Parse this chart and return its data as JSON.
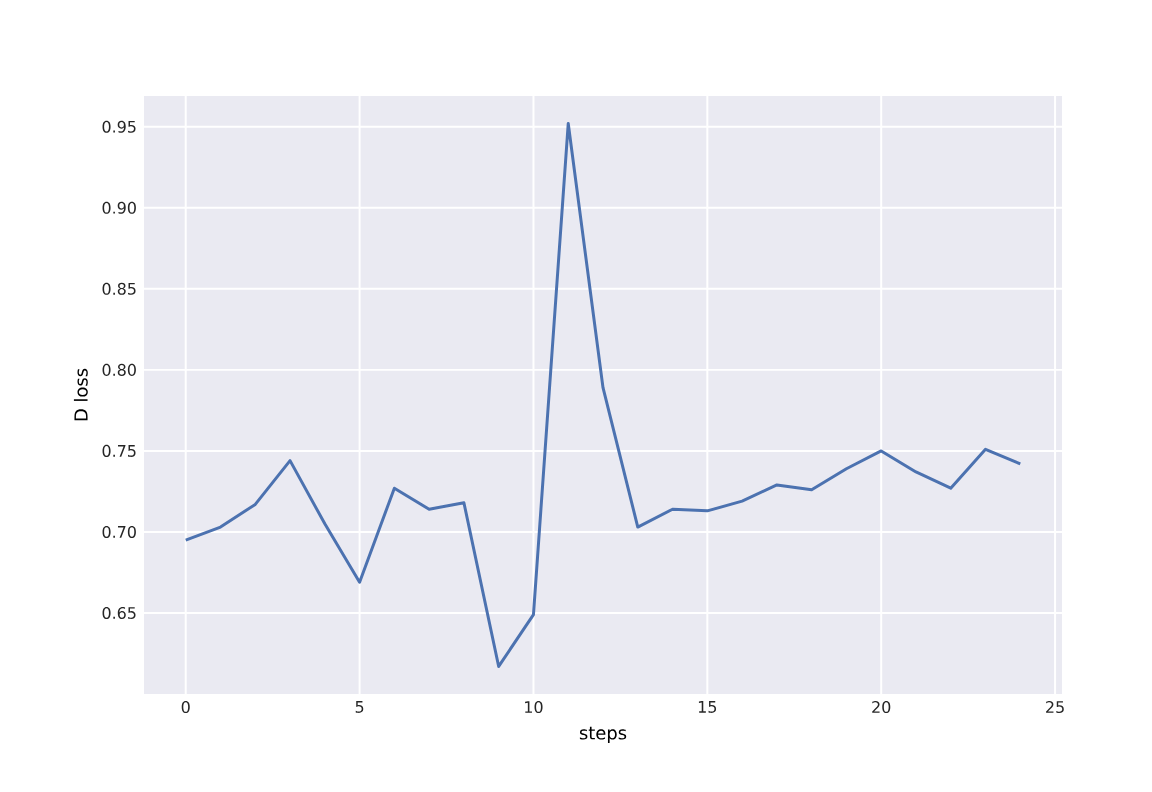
{
  "chart_data": {
    "type": "line",
    "xlabel": "steps",
    "ylabel": "D loss",
    "x": [
      0,
      1,
      2,
      3,
      4,
      5,
      6,
      7,
      8,
      9,
      10,
      11,
      12,
      13,
      14,
      15,
      16,
      17,
      18,
      19,
      20,
      21,
      22,
      23,
      24
    ],
    "series": [
      {
        "color": "#4c72b0",
        "values": [
          0.695,
          0.703,
          0.717,
          0.744,
          0.705,
          0.669,
          0.727,
          0.714,
          0.718,
          0.617,
          0.649,
          0.952,
          0.789,
          0.703,
          0.714,
          0.713,
          0.719,
          0.729,
          0.726,
          0.739,
          0.75,
          0.737,
          0.727,
          0.751,
          0.742
        ]
      }
    ],
    "xlim": [
      -1.2,
      25.2
    ],
    "ylim": [
      0.6,
      0.969
    ],
    "xticks": [
      0,
      5,
      10,
      15,
      20,
      25
    ],
    "yticks": [
      {
        "value": 0.65,
        "label": "0.65"
      },
      {
        "value": 0.7,
        "label": "0.70"
      },
      {
        "value": 0.75,
        "label": "0.75"
      },
      {
        "value": 0.8,
        "label": "0.80"
      },
      {
        "value": 0.85,
        "label": "0.85"
      },
      {
        "value": 0.9,
        "label": "0.90"
      },
      {
        "value": 0.95,
        "label": "0.95"
      }
    ],
    "grid": true,
    "marker": "none",
    "line_style": "solid"
  }
}
